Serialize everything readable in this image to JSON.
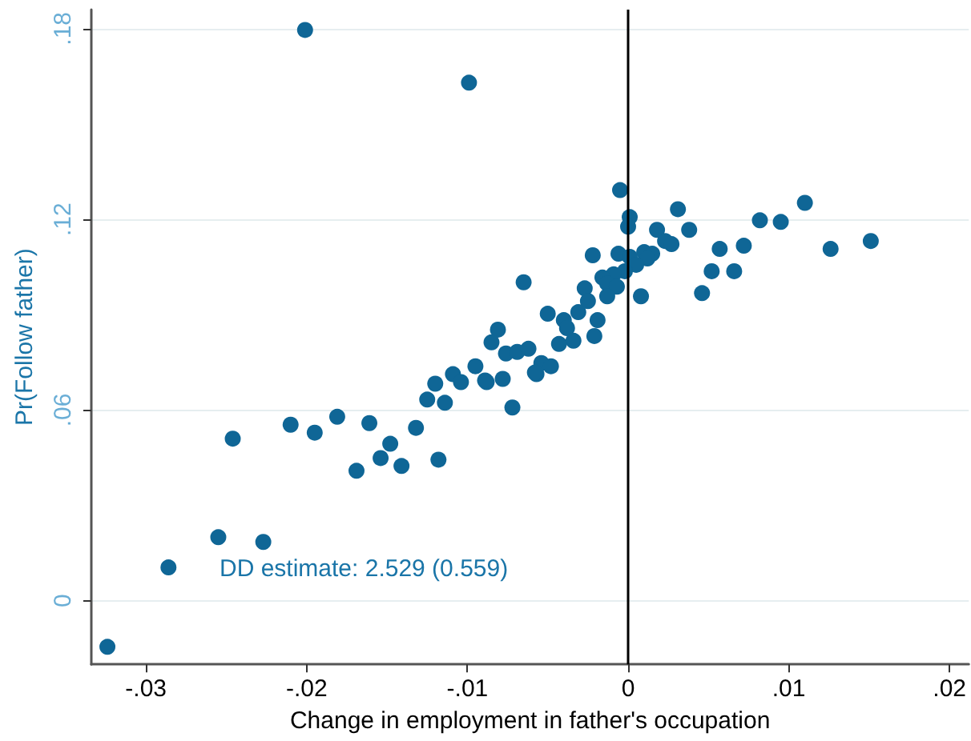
{
  "chart_data": {
    "type": "scatter",
    "xlabel": "Change in employment in father's occupation",
    "ylabel": "Pr(Follow father)",
    "xlim": [
      -0.0334,
      0.0212
    ],
    "ylim": [
      -0.02,
      0.186
    ],
    "xticks": [
      {
        "value": -0.03,
        "label": "-.03"
      },
      {
        "value": -0.02,
        "label": "-.02"
      },
      {
        "value": -0.01,
        "label": "-.01"
      },
      {
        "value": 0,
        "label": "0"
      },
      {
        "value": 0.01,
        "label": ".01"
      },
      {
        "value": 0.02,
        "label": ".02"
      }
    ],
    "yticks": [
      {
        "value": 0,
        "label": "0"
      },
      {
        "value": 0.06,
        "label": ".06"
      },
      {
        "value": 0.12,
        "label": ".12"
      },
      {
        "value": 0.18,
        "label": ".18"
      }
    ],
    "grid": "y",
    "marker": "circle",
    "ref_lines": [
      {
        "axis": "x",
        "value": 0,
        "color": "#000000"
      }
    ],
    "annotations": [
      "DD estimate: 2.529 (0.559)"
    ],
    "series": [
      {
        "color": "#0f6696",
        "x": [
          -0.0201,
          -0.0099,
          -0.0324,
          -0.0286,
          -0.0255,
          -0.0227,
          -0.0246,
          -0.021,
          -0.0195,
          -0.0181,
          -0.0169,
          -0.0161,
          -0.0154,
          -0.0148,
          -0.0141,
          -0.0132,
          -0.0118,
          -0.0125,
          -0.012,
          -0.0114,
          -0.0109,
          -0.0104,
          -0.0095,
          -0.0089,
          -0.0078,
          -0.0072,
          -0.0057,
          -0.0005,
          0.0001,
          0,
          0.0031,
          0.0018,
          0.0038,
          0.0023,
          0.0027,
          0.0082,
          0.0095,
          0.011,
          0.0151,
          0.0126,
          0.0072,
          0.0057,
          0.0052,
          0.0066,
          0.0046,
          0.0008,
          -0.0022,
          -0.0065,
          -0.0006,
          0.0001,
          0.001,
          0.0015,
          0.0012,
          0.0005,
          -0.0002,
          -0.0009,
          -0.0016,
          -0.0013,
          -0.0007,
          -0.0013,
          -0.0027,
          -0.0025,
          -0.0031,
          -0.005,
          -0.004,
          -0.0038,
          -0.0019,
          -0.0021,
          -0.0034,
          -0.0043,
          -0.0081,
          -0.0085,
          -0.0076,
          -0.0069,
          -0.0062,
          -0.0054,
          -0.0048,
          -0.0058,
          -0.0088
        ],
        "values": [
          0.1796,
          0.163,
          -0.0145,
          0.0105,
          0.02,
          0.0185,
          0.051,
          0.0554,
          0.0529,
          0.0579,
          0.0409,
          0.0559,
          0.0449,
          0.0494,
          0.0424,
          0.0544,
          0.0444,
          0.0633,
          0.0683,
          0.0623,
          0.0713,
          0.0688,
          0.0738,
          0.0693,
          0.0698,
          0.0608,
          0.0713,
          0.1292,
          0.1207,
          0.1177,
          0.1232,
          0.1167,
          0.1167,
          0.1132,
          0.1122,
          0.1197,
          0.1192,
          0.1252,
          0.1132,
          0.1107,
          0.1117,
          0.1107,
          0.1037,
          0.1037,
          0.0968,
          0.0958,
          0.1087,
          0.1002,
          0.1092,
          0.1082,
          0.1097,
          0.1092,
          0.1077,
          0.1057,
          0.1037,
          0.1027,
          0.1017,
          0.0998,
          0.0988,
          0.0958,
          0.0983,
          0.0943,
          0.0908,
          0.0903,
          0.0883,
          0.0858,
          0.0883,
          0.0833,
          0.0818,
          0.0808,
          0.0853,
          0.0813,
          0.0778,
          0.0783,
          0.0793,
          0.0748,
          0.0738,
          0.0718,
          0.0688
        ]
      }
    ]
  }
}
